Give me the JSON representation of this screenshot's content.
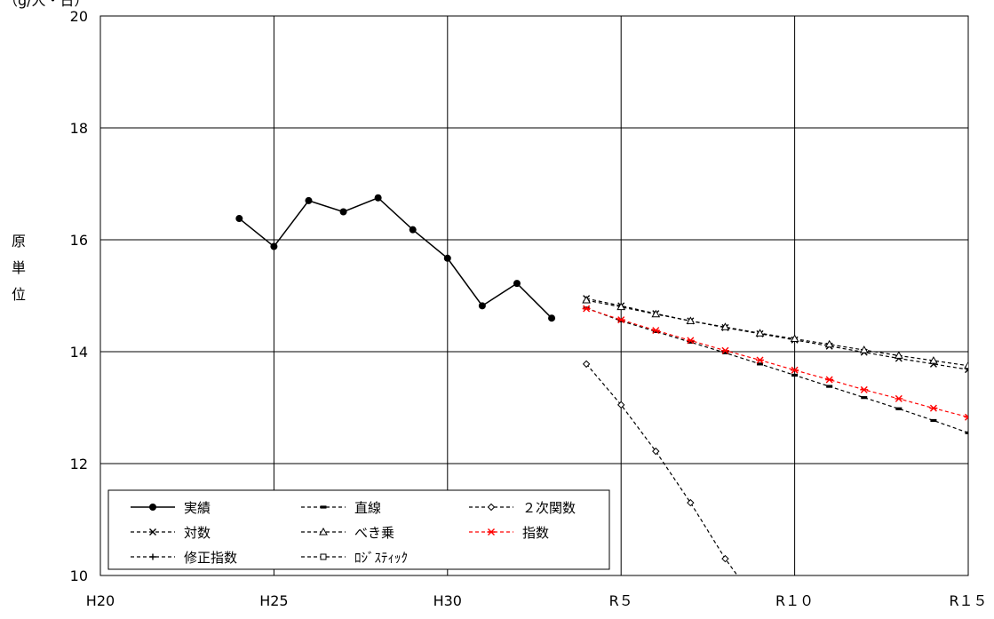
{
  "chart_data": {
    "type": "line",
    "title": "",
    "ylabel": "原単位",
    "yunit": "（g/人・日）",
    "xlabel": "",
    "ylim": [
      10,
      20
    ],
    "yticks": [
      10,
      12,
      14,
      16,
      18,
      20
    ],
    "x_range": [
      2008,
      2033
    ],
    "x_ticks": [
      {
        "x": 2008,
        "label": "H20"
      },
      {
        "x": 2013,
        "label": "H25"
      },
      {
        "x": 2018,
        "label": "H30"
      },
      {
        "x": 2023,
        "label": "R５"
      },
      {
        "x": 2028,
        "label": "R１０"
      },
      {
        "x": 2033,
        "label": "R１５"
      }
    ],
    "grid": true,
    "legend_position": "bottom-left",
    "series": [
      {
        "name": "実績",
        "marker": "dot",
        "dash": "solid",
        "color": "#000000",
        "x": [
          2012,
          2013,
          2014,
          2015,
          2016,
          2017,
          2018,
          2019,
          2020,
          2021
        ],
        "values": [
          16.38,
          15.88,
          16.7,
          16.5,
          16.75,
          16.18,
          15.67,
          14.82,
          15.22,
          14.6
        ]
      },
      {
        "name": "直線",
        "marker": "dash",
        "dash": "dashed",
        "color": "#000000",
        "x": [
          2022,
          2023,
          2024,
          2025,
          2026,
          2027,
          2028,
          2029,
          2030,
          2031,
          2032,
          2033
        ],
        "values": [
          14.78,
          14.55,
          14.36,
          14.17,
          13.98,
          13.78,
          13.58,
          13.38,
          13.18,
          12.98,
          12.77,
          12.55
        ]
      },
      {
        "name": "２次関数",
        "marker": "diamond",
        "dash": "dashed",
        "color": "#000000",
        "x": [
          2022,
          2023,
          2024,
          2025,
          2026,
          2026.7
        ],
        "values": [
          13.78,
          13.05,
          12.22,
          11.3,
          10.3,
          9.7
        ]
      },
      {
        "name": "対数",
        "marker": "x",
        "dash": "dashed",
        "color": "#000000",
        "x": [
          2022,
          2023,
          2024,
          2025,
          2026,
          2027,
          2028,
          2029,
          2030,
          2031,
          2032,
          2033
        ],
        "values": [
          14.95,
          14.82,
          14.68,
          14.55,
          14.43,
          14.32,
          14.21,
          14.1,
          13.99,
          13.88,
          13.78,
          13.68
        ]
      },
      {
        "name": "べき乗",
        "marker": "triangle",
        "dash": "dashed",
        "color": "#000000",
        "x": [
          2022,
          2023,
          2024,
          2025,
          2026,
          2027,
          2028,
          2029,
          2030,
          2031,
          2032,
          2033
        ],
        "values": [
          14.92,
          14.8,
          14.67,
          14.55,
          14.44,
          14.33,
          14.23,
          14.13,
          14.03,
          13.93,
          13.84,
          13.75
        ]
      },
      {
        "name": "指数",
        "marker": "star",
        "dash": "dashed",
        "color": "#ff0000",
        "x": [
          2022,
          2023,
          2024,
          2025,
          2026,
          2027,
          2028,
          2029,
          2030,
          2031,
          2032,
          2033
        ],
        "values": [
          14.77,
          14.57,
          14.38,
          14.2,
          14.02,
          13.85,
          13.67,
          13.5,
          13.32,
          13.16,
          12.99,
          12.83
        ]
      },
      {
        "name": "修正指数",
        "marker": "plus",
        "dash": "dashed",
        "color": "#000000",
        "x": [],
        "values": []
      },
      {
        "name": "ﾛｼﾞｽﾃｨｯｸ",
        "marker": "square",
        "dash": "dashed",
        "color": "#000000",
        "x": [],
        "values": []
      }
    ]
  }
}
